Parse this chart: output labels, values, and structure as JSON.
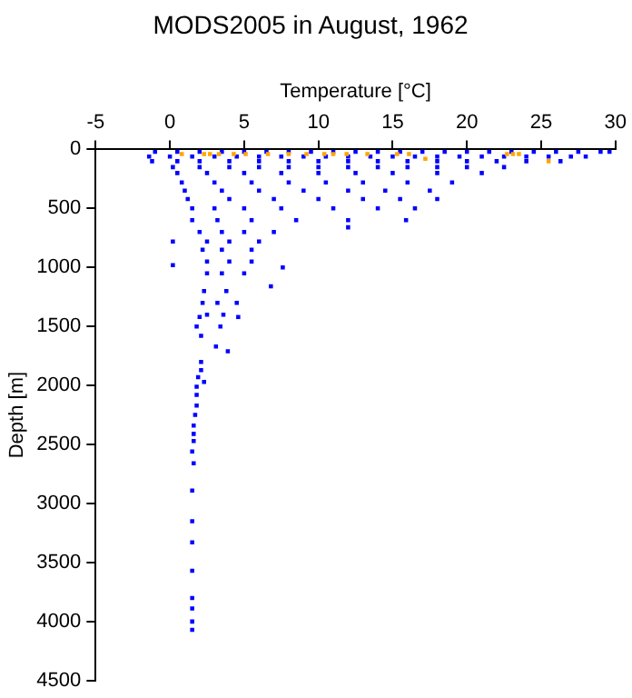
{
  "chart_data": {
    "type": "scatter",
    "title": "MODS2005 in August, 1962",
    "xlabel": "Temperature [°C]",
    "ylabel": "Depth [m]",
    "xlim": [
      -5,
      30
    ],
    "ylim": [
      4500,
      0
    ],
    "xticks": [
      -5,
      0,
      5,
      10,
      15,
      20,
      25,
      30
    ],
    "yticks": [
      0,
      500,
      1000,
      1500,
      2000,
      2500,
      3000,
      3500,
      4000,
      4500
    ],
    "grid": false,
    "legend": false,
    "marker": "square",
    "series": [
      {
        "color": "#0000ff",
        "x": [
          -1,
          0.5,
          2,
          3.5,
          5,
          6.5,
          8,
          9.5,
          11,
          12.5,
          14,
          15.5,
          17,
          18.5,
          20,
          21.5,
          23,
          24.5,
          26,
          27.5,
          29,
          29.6,
          -1.4,
          0,
          1.5,
          3,
          4.5,
          6,
          7.5,
          9,
          10.5,
          12,
          13.5,
          15,
          16.5,
          18,
          19.5,
          21,
          22.5,
          24,
          25.5,
          27,
          28,
          -1.2,
          0.5,
          2,
          4,
          6,
          8,
          10,
          12,
          14,
          16,
          18,
          20,
          22,
          24,
          26.3,
          0.2,
          2,
          4,
          6,
          8,
          10,
          12,
          14,
          16,
          18,
          20,
          22.5,
          0.5,
          2.5,
          5,
          7.5,
          10,
          12.5,
          15,
          18,
          21,
          0.8,
          3,
          5.5,
          8,
          10.5,
          13,
          16,
          19,
          1,
          3.5,
          6,
          9,
          12,
          14.5,
          17.5,
          1.2,
          4,
          7,
          10,
          13,
          15.5,
          18,
          1.5,
          3,
          5,
          7.5,
          11,
          14,
          16.5,
          1.5,
          3.2,
          5.5,
          8.5,
          12,
          15.9,
          12,
          2,
          3.5,
          5,
          7,
          0.2,
          2.5,
          4,
          6,
          2.2,
          3.5,
          5.5,
          2.5,
          4,
          5.5,
          0.2,
          7.6,
          2.5,
          3.5,
          5,
          6.8,
          2.3,
          3.8,
          2.2,
          3.2,
          4.5,
          2.5,
          3.6,
          2,
          4.6,
          1.8,
          3.4,
          2.1,
          3.1,
          3.9,
          2.1,
          2.1,
          1.9,
          2.3,
          1.8,
          1.8,
          1.8,
          1.7,
          1.6,
          1.6,
          1.6,
          1.5,
          1.6,
          1.5,
          1.5,
          1.5,
          1.5,
          1.5,
          1.5,
          1.5,
          1.5
        ],
        "values": [
          20,
          20,
          20,
          20,
          20,
          20,
          20,
          20,
          20,
          20,
          20,
          20,
          20,
          20,
          20,
          20,
          20,
          20,
          20,
          20,
          20,
          20,
          60,
          60,
          60,
          60,
          60,
          60,
          60,
          60,
          60,
          60,
          60,
          60,
          60,
          60,
          60,
          60,
          60,
          60,
          60,
          60,
          60,
          100,
          100,
          100,
          100,
          100,
          100,
          100,
          100,
          100,
          100,
          100,
          100,
          100,
          100,
          100,
          150,
          150,
          150,
          150,
          150,
          150,
          150,
          150,
          150,
          150,
          150,
          150,
          200,
          200,
          200,
          200,
          200,
          200,
          200,
          200,
          200,
          280,
          280,
          280,
          280,
          280,
          280,
          280,
          280,
          350,
          350,
          350,
          350,
          350,
          350,
          350,
          420,
          420,
          420,
          420,
          420,
          420,
          420,
          500,
          500,
          500,
          500,
          500,
          500,
          500,
          600,
          600,
          600,
          600,
          600,
          600,
          660,
          700,
          700,
          700,
          700,
          780,
          780,
          780,
          780,
          850,
          850,
          850,
          950,
          950,
          950,
          980,
          1000,
          1050,
          1050,
          1050,
          1160,
          1200,
          1200,
          1300,
          1300,
          1300,
          1400,
          1400,
          1420,
          1420,
          1500,
          1500,
          1580,
          1670,
          1710,
          1800,
          1870,
          1930,
          1970,
          2010,
          2080,
          2170,
          2250,
          2340,
          2410,
          2470,
          2560,
          2660,
          2890,
          3150,
          3330,
          3570,
          3800,
          3890,
          4000,
          4070
        ]
      },
      {
        "color": "#ffa500",
        "x": [
          0.8,
          2.3,
          2.7,
          3.3,
          4.3,
          5.1,
          6.6,
          8,
          9.2,
          10.4,
          11,
          11.9,
          13.3,
          15.3,
          16.1,
          17.2,
          22.7,
          23.1,
          23.5,
          25.5
        ],
        "values": [
          40,
          40,
          40,
          40,
          40,
          40,
          40,
          40,
          40,
          40,
          40,
          40,
          40,
          40,
          40,
          80,
          40,
          40,
          40,
          100
        ]
      }
    ]
  }
}
